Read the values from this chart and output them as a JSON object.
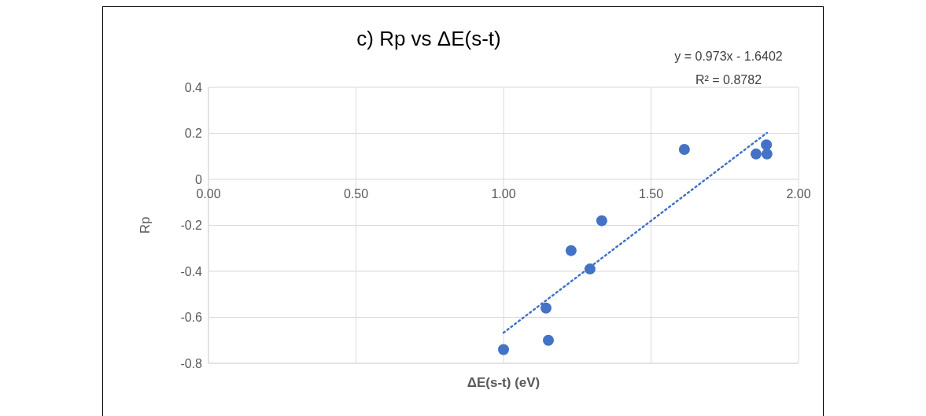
{
  "chart_data": {
    "type": "scatter",
    "title": "c) Rp vs ΔE(s-t)",
    "xlabel": "ΔE(s-t) (eV)",
    "ylabel": "Rp",
    "annotations": [
      "y = 0.973x - 1.6402",
      "R² = 0.8782"
    ],
    "series": [
      {
        "color": "#4472c4",
        "marker": "circle",
        "x": [
          1.0,
          1.144,
          1.152,
          1.229,
          1.293,
          1.333,
          1.613,
          1.856,
          1.891,
          1.893
        ],
        "values": [
          -0.74,
          -0.56,
          -0.7,
          -0.31,
          -0.39,
          -0.18,
          0.13,
          0.11,
          0.15,
          0.11
        ]
      },
      {
        "type": "line",
        "color": "#4472c4",
        "line_style": "dotted",
        "x": [
          1.0,
          1.893
        ],
        "values": [
          -0.667,
          0.202
        ]
      }
    ],
    "xlim": [
      0,
      2
    ],
    "xticks": [
      {
        "value": 0,
        "label": "0.00"
      },
      {
        "value": 0.5,
        "label": "0.50"
      },
      {
        "value": 1,
        "label": "1.00"
      },
      {
        "value": 1.5,
        "label": "1.50"
      },
      {
        "value": 2,
        "label": "2.00"
      }
    ],
    "ylim": [
      -0.8,
      0.4
    ],
    "yticks": [
      -0.8,
      -0.6,
      -0.4,
      -0.2,
      0,
      0.2,
      0.4
    ],
    "grid": true,
    "legend": false
  }
}
